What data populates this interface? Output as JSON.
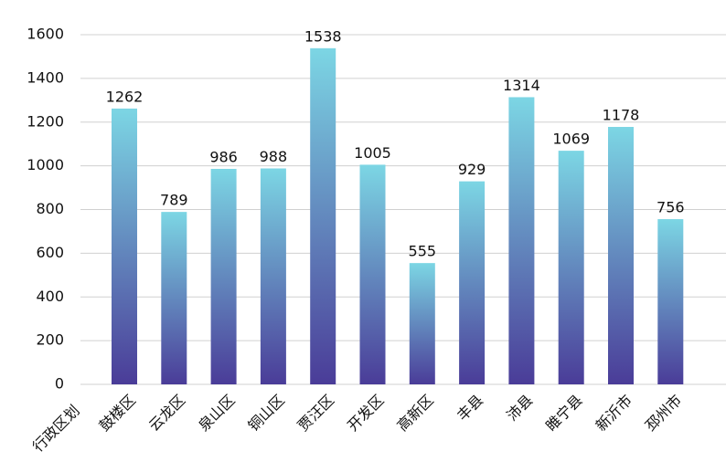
{
  "chart_data": {
    "type": "bar",
    "x_label": "行政区划",
    "categories": [
      "鼓楼区",
      "云龙区",
      "泉山区",
      "铜山区",
      "贾汪区",
      "开发区",
      "高新区",
      "丰县",
      "沛县",
      "睢宁县",
      "新沂市",
      "邳州市"
    ],
    "values": [
      1262,
      789,
      986,
      988,
      1538,
      1005,
      555,
      929,
      1314,
      1069,
      1178,
      756
    ],
    "colors": [
      "#7cd6e4",
      "#4a3c98"
    ],
    "ylim": [
      0,
      1600
    ],
    "yticks": [
      0,
      200,
      400,
      600,
      800,
      1000,
      1200,
      1400,
      1600
    ],
    "grid": true
  }
}
